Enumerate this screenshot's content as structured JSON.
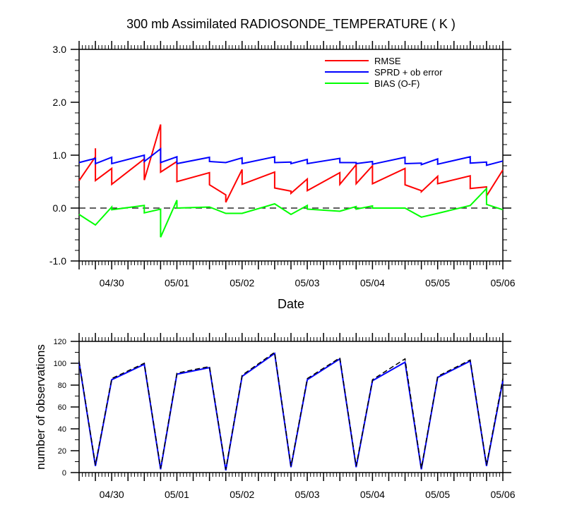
{
  "figure_title": "300 mb Assimilated RADIOSONDE_TEMPERATURE ( K )",
  "chart_data": [
    {
      "type": "line",
      "title": "300 mb Assimilated RADIOSONDE_TEMPERATURE ( K )",
      "xlabel": "Date",
      "ylabel": "",
      "xlim": [
        0,
        6.5
      ],
      "ylim": [
        -1.0,
        3.0
      ],
      "x_tick_labels": [
        "04/30",
        "05/01",
        "05/02",
        "05/03",
        "05/04",
        "05/05",
        "05/06"
      ],
      "y_tick_labels": [
        "-1.0",
        "0.0",
        "1.0",
        "2.0",
        "3.0"
      ],
      "grid": false,
      "legend_position": "top-right",
      "zero_line": "dashed",
      "series": [
        {
          "name": "RMSE",
          "color": "#ff0000",
          "points": [
            [
              0,
              0.52
            ],
            [
              0.25,
              0.97
            ],
            [
              0.25,
              1.13
            ],
            [
              0.25,
              0.52
            ],
            [
              0.5,
              0.75
            ],
            [
              0.5,
              0.45
            ],
            [
              1.0,
              0.93
            ],
            [
              1.0,
              0.53
            ],
            [
              1.25,
              1.58
            ],
            [
              1.25,
              0.68
            ],
            [
              1.5,
              0.88
            ],
            [
              1.5,
              0.5
            ],
            [
              2.0,
              0.67
            ],
            [
              2.0,
              0.44
            ],
            [
              2.25,
              0.25
            ],
            [
              2.25,
              0.11
            ],
            [
              2.5,
              0.73
            ],
            [
              2.5,
              0.45
            ],
            [
              3.0,
              0.68
            ],
            [
              3.0,
              0.38
            ],
            [
              3.25,
              0.32
            ],
            [
              3.25,
              0.28
            ],
            [
              3.5,
              0.55
            ],
            [
              3.5,
              0.33
            ],
            [
              4.0,
              0.67
            ],
            [
              4.0,
              0.45
            ],
            [
              4.25,
              0.82
            ],
            [
              4.25,
              0.46
            ],
            [
              4.5,
              0.8
            ],
            [
              4.5,
              0.46
            ],
            [
              5.0,
              0.75
            ],
            [
              5.0,
              0.44
            ],
            [
              5.25,
              0.33
            ],
            [
              5.25,
              0.31
            ],
            [
              5.5,
              0.6
            ],
            [
              5.5,
              0.46
            ],
            [
              6.0,
              0.61
            ],
            [
              6.0,
              0.37
            ],
            [
              6.25,
              0.4
            ],
            [
              6.25,
              0.23
            ],
            [
              6.5,
              0.72
            ]
          ]
        },
        {
          "name": "SPRD + ob error",
          "color": "#0000ff",
          "points": [
            [
              0,
              0.86
            ],
            [
              0.25,
              0.94
            ],
            [
              0.25,
              0.84
            ],
            [
              0.5,
              0.96
            ],
            [
              0.5,
              0.84
            ],
            [
              1.0,
              1.0
            ],
            [
              1.0,
              0.88
            ],
            [
              1.25,
              1.12
            ],
            [
              1.25,
              0.86
            ],
            [
              1.5,
              0.97
            ],
            [
              1.5,
              0.84
            ],
            [
              2.0,
              0.96
            ],
            [
              2.0,
              0.88
            ],
            [
              2.25,
              0.86
            ],
            [
              2.5,
              0.95
            ],
            [
              2.5,
              0.84
            ],
            [
              3.0,
              0.97
            ],
            [
              3.0,
              0.86
            ],
            [
              3.25,
              0.87
            ],
            [
              3.25,
              0.84
            ],
            [
              3.5,
              0.92
            ],
            [
              3.5,
              0.84
            ],
            [
              4.0,
              0.94
            ],
            [
              4.0,
              0.86
            ],
            [
              4.25,
              0.86
            ],
            [
              4.25,
              0.84
            ],
            [
              4.5,
              0.88
            ],
            [
              4.5,
              0.83
            ],
            [
              5.0,
              0.96
            ],
            [
              5.0,
              0.84
            ],
            [
              5.25,
              0.85
            ],
            [
              5.25,
              0.82
            ],
            [
              5.5,
              0.93
            ],
            [
              5.5,
              0.83
            ],
            [
              6.0,
              0.97
            ],
            [
              6.0,
              0.85
            ],
            [
              6.25,
              0.87
            ],
            [
              6.25,
              0.81
            ],
            [
              6.5,
              0.89
            ]
          ]
        },
        {
          "name": "BIAS (O-F)",
          "color": "#00ff00",
          "points": [
            [
              0,
              -0.12
            ],
            [
              0.25,
              -0.32
            ],
            [
              0.5,
              0.02
            ],
            [
              0.5,
              -0.03
            ],
            [
              1.0,
              0.05
            ],
            [
              1.0,
              -0.09
            ],
            [
              1.25,
              -0.02
            ],
            [
              1.25,
              -0.55
            ],
            [
              1.5,
              0.15
            ],
            [
              1.5,
              0.0
            ],
            [
              2.0,
              0.02
            ],
            [
              2.25,
              -0.1
            ],
            [
              2.5,
              -0.1
            ],
            [
              3.0,
              0.08
            ],
            [
              3.25,
              -0.12
            ],
            [
              3.5,
              0.05
            ],
            [
              3.5,
              -0.02
            ],
            [
              4.0,
              -0.06
            ],
            [
              4.25,
              0.03
            ],
            [
              4.25,
              -0.02
            ],
            [
              4.5,
              0.04
            ],
            [
              4.5,
              0.0
            ],
            [
              5.0,
              0.0
            ],
            [
              5.25,
              -0.17
            ],
            [
              5.5,
              -0.1
            ],
            [
              6.0,
              0.05
            ],
            [
              6.25,
              0.37
            ],
            [
              6.25,
              0.07
            ],
            [
              6.5,
              -0.03
            ]
          ]
        }
      ]
    },
    {
      "type": "line",
      "title": "",
      "xlabel": "",
      "ylabel": "number of observations",
      "xlim": [
        0,
        6.5
      ],
      "ylim": [
        0,
        120
      ],
      "x_tick_labels": [
        "04/30",
        "05/01",
        "05/02",
        "05/03",
        "05/04",
        "05/05",
        "05/06"
      ],
      "y_tick_labels": [
        "0",
        "20",
        "40",
        "60",
        "80",
        "100",
        "120"
      ],
      "grid": false,
      "series": [
        {
          "name": "",
          "color": "#0000ff",
          "style": "solid",
          "points": [
            [
              0,
              101
            ],
            [
              0.25,
              6
            ],
            [
              0.5,
              85
            ],
            [
              1.0,
              99
            ],
            [
              1.25,
              3
            ],
            [
              1.5,
              90
            ],
            [
              2.0,
              96
            ],
            [
              2.25,
              2
            ],
            [
              2.5,
              88
            ],
            [
              3.0,
              109
            ],
            [
              3.25,
              5
            ],
            [
              3.5,
              85
            ],
            [
              4.0,
              104
            ],
            [
              4.25,
              5
            ],
            [
              4.5,
              84
            ],
            [
              5.0,
              101
            ],
            [
              5.25,
              3
            ],
            [
              5.5,
              87
            ],
            [
              6.0,
              102
            ],
            [
              6.25,
              6
            ],
            [
              6.5,
              84
            ]
          ]
        },
        {
          "name": "",
          "color": "#000000",
          "style": "dashed",
          "points": [
            [
              0,
              102
            ],
            [
              0.25,
              7
            ],
            [
              0.5,
              86
            ],
            [
              1.0,
              100
            ],
            [
              1.25,
              4
            ],
            [
              1.5,
              91
            ],
            [
              2.0,
              97
            ],
            [
              2.25,
              3
            ],
            [
              2.5,
              89
            ],
            [
              3.0,
              110
            ],
            [
              3.25,
              6
            ],
            [
              3.5,
              86
            ],
            [
              4.0,
              105
            ],
            [
              4.25,
              6
            ],
            [
              4.5,
              85
            ],
            [
              5.0,
              104
            ],
            [
              5.25,
              4
            ],
            [
              5.5,
              88
            ],
            [
              6.0,
              103
            ],
            [
              6.25,
              7
            ],
            [
              6.5,
              86
            ]
          ]
        }
      ]
    }
  ]
}
